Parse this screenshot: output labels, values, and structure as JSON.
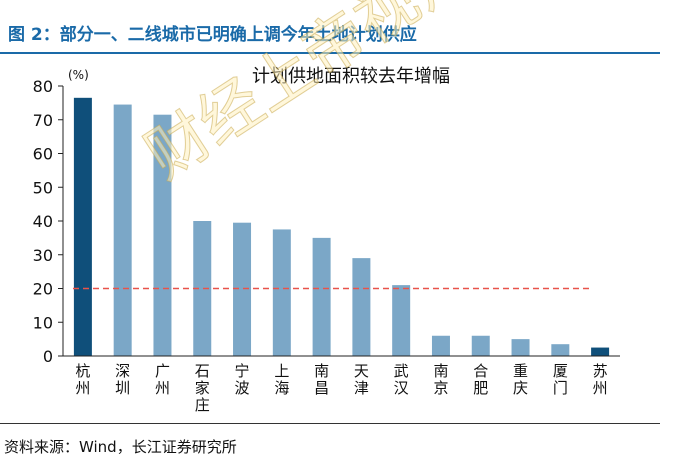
{
  "figure_title": "图 2：部分一、二线城市已明确上调今年土地计划供应",
  "source": "资料来源：Wind，长江证券研究所",
  "watermark": "财经上帝视角",
  "chart_data": {
    "type": "bar",
    "title": "计划供地面积较去年增幅",
    "yunit": "(%)",
    "categories": [
      "杭州",
      "深圳",
      "广州",
      "石家庄",
      "宁波",
      "上海",
      "南昌",
      "天津",
      "武汉",
      "南京",
      "合肥",
      "重庆",
      "厦门",
      "苏州"
    ],
    "values": [
      76.5,
      74.5,
      71.5,
      40,
      39.5,
      37.5,
      35,
      29,
      21,
      6,
      6,
      5,
      3.5,
      2.5
    ],
    "highlight": [
      0,
      13
    ],
    "reference_line": 20,
    "ylim": [
      0,
      80
    ],
    "yticks": [
      0,
      10,
      20,
      30,
      40,
      50,
      60,
      70,
      80
    ],
    "grid": false,
    "colors": {
      "bar": "#7ba7c7",
      "highlight": "#0f4f7a",
      "reference": "#e8534a",
      "axis": "#222222"
    }
  }
}
